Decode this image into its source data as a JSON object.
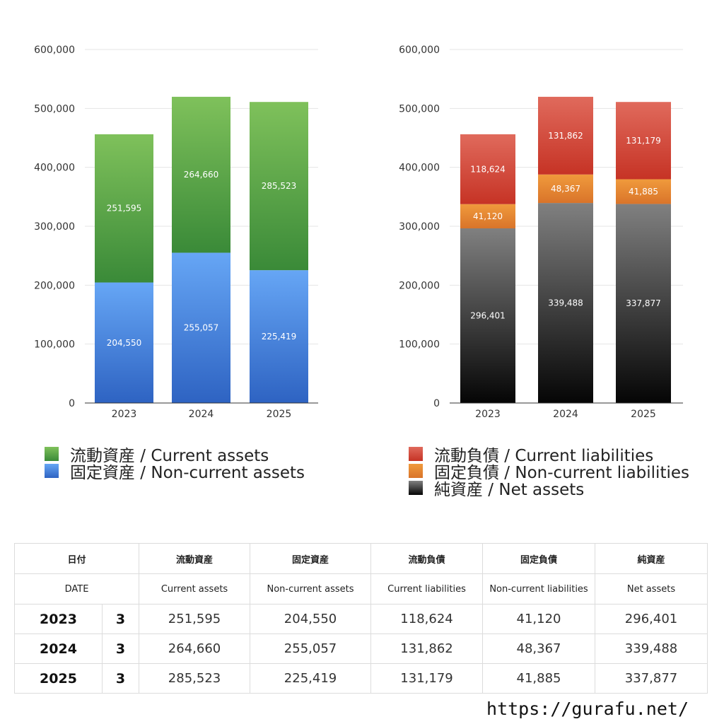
{
  "chart_data": [
    {
      "type": "bar",
      "stacked": true,
      "categories": [
        "2023",
        "2024",
        "2025"
      ],
      "y_ticks": [
        "0",
        "100,000",
        "200,000",
        "300,000",
        "400,000",
        "500,000",
        "600,000"
      ],
      "ylim": [
        0,
        600000
      ],
      "grid": true,
      "legend_position": "bottom",
      "series": [
        {
          "name": "固定資産 / Non-current assets",
          "values": [
            204550,
            255057,
            225419
          ],
          "value_labels": [
            "204,550",
            "255,057",
            "225,419"
          ],
          "color": "#4a86d8"
        },
        {
          "name": "流動資産 / Current assets",
          "values": [
            251595,
            264660,
            285523
          ],
          "value_labels": [
            "251,595",
            "264,660",
            "285,523"
          ],
          "color": "#5aa046"
        }
      ],
      "legend": [
        {
          "label": "流動資産 / Current assets",
          "color": "#5aa046"
        },
        {
          "label": "固定資産 / Non-current assets",
          "color": "#4a86d8"
        }
      ]
    },
    {
      "type": "bar",
      "stacked": true,
      "categories": [
        "2023",
        "2024",
        "2025"
      ],
      "y_ticks": [
        "0",
        "100,000",
        "200,000",
        "300,000",
        "400,000",
        "500,000",
        "600,000"
      ],
      "ylim": [
        0,
        600000
      ],
      "grid": true,
      "legend_position": "bottom",
      "series": [
        {
          "name": "純資産 / Net assets",
          "values": [
            296401,
            339488,
            337877
          ],
          "value_labels": [
            "296,401",
            "339,488",
            "337,877"
          ],
          "color": "#2a2a2a"
        },
        {
          "name": "固定負債 / Non-current liabilities",
          "values": [
            41120,
            48367,
            41885
          ],
          "value_labels": [
            "41,120",
            "48,367",
            "41,885"
          ],
          "color": "#e88a2e"
        },
        {
          "name": "流動負債 / Current liabilities",
          "values": [
            118624,
            131862,
            131179
          ],
          "value_labels": [
            "118,624",
            "131,862",
            "131,179"
          ],
          "color": "#d9473a"
        }
      ],
      "legend": [
        {
          "label": "流動負債 / Current liabilities",
          "color": "#d9473a"
        },
        {
          "label": "固定負債 / Non-current liabilities",
          "color": "#e88a2e"
        },
        {
          "label": "純資産 / Net assets",
          "color": "#2a2a2a"
        }
      ]
    }
  ],
  "table": {
    "headers_ja": [
      "日付",
      "流動資産",
      "固定資産",
      "流動負債",
      "固定負債",
      "純資産"
    ],
    "headers_en": [
      "DATE",
      "Current assets",
      "Non-current assets",
      "Current liabilities",
      "Non-current liabilities",
      "Net assets"
    ],
    "rows": [
      {
        "year": "2023",
        "month": "3",
        "values": [
          "251,595",
          "204,550",
          "118,624",
          "41,120",
          "296,401"
        ]
      },
      {
        "year": "2024",
        "month": "3",
        "values": [
          "264,660",
          "255,057",
          "131,862",
          "48,367",
          "339,488"
        ]
      },
      {
        "year": "2025",
        "month": "3",
        "values": [
          "285,523",
          "225,419",
          "131,179",
          "41,885",
          "337,877"
        ]
      }
    ]
  },
  "watermark": "https://gurafu.net/"
}
